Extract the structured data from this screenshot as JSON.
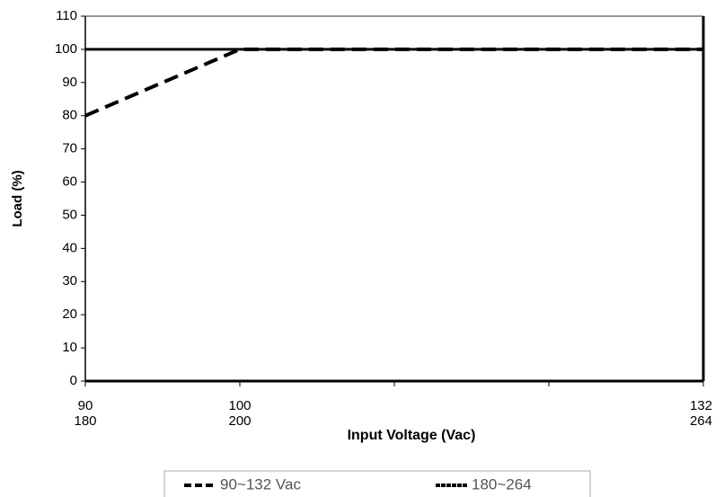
{
  "chart_data": {
    "type": "line",
    "x_label": "Input Voltage (Vac)",
    "y_label": "Load (%)",
    "categories": [
      "90",
      "100",
      null,
      null,
      "132"
    ],
    "categories2": [
      "180",
      "200",
      null,
      null,
      "264"
    ],
    "series": [
      {
        "name": "90~132 Vac",
        "color": "#000000",
        "dash": true,
        "values": [
          80,
          100,
          100,
          100,
          100
        ]
      },
      {
        "name": "180~264",
        "color": "#000000",
        "dash": false,
        "values": [
          100,
          100,
          100,
          100,
          100
        ]
      }
    ],
    "ylim": [
      0,
      110
    ],
    "yticks": [
      0,
      10,
      20,
      30,
      40,
      50,
      60,
      70,
      80,
      90,
      100,
      110
    ],
    "grid": false,
    "legend": "bottom"
  }
}
